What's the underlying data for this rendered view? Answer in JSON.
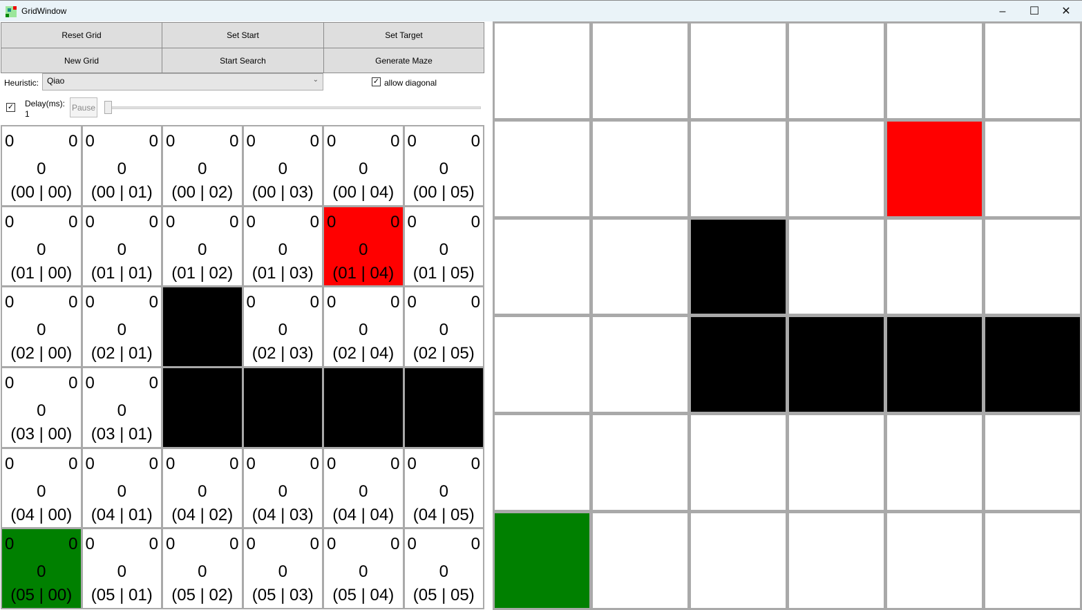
{
  "window": {
    "title": "GridWindow",
    "controls": [
      "–",
      "☐",
      "✕"
    ]
  },
  "toolbar": {
    "reset_grid": "Reset Grid",
    "set_start": "Set Start",
    "set_target": "Set Target",
    "new_grid": "New Grid",
    "start_search": "Start Search",
    "generate_maze": "Generate Maze"
  },
  "heuristic": {
    "label": "Heuristic:",
    "value": "Qiao"
  },
  "allow_diagonal": {
    "label": "allow diagonal",
    "checked": true
  },
  "delay": {
    "label": "Delay(ms):",
    "value": "1",
    "checked": true,
    "pause_label": "Pause",
    "slider_value": 1
  },
  "colors": {
    "empty": "#ffffff",
    "wall": "#000000",
    "target": "#ff0000",
    "start": "#008000"
  },
  "grid": {
    "rows": 6,
    "cols": 6,
    "cell_values": {
      "g": "0",
      "h": "0",
      "f": "0"
    },
    "walls": [
      [
        2,
        2
      ],
      [
        3,
        2
      ],
      [
        3,
        3
      ],
      [
        3,
        4
      ],
      [
        3,
        5
      ]
    ],
    "target": [
      1,
      4
    ],
    "start": [
      5,
      0
    ]
  }
}
